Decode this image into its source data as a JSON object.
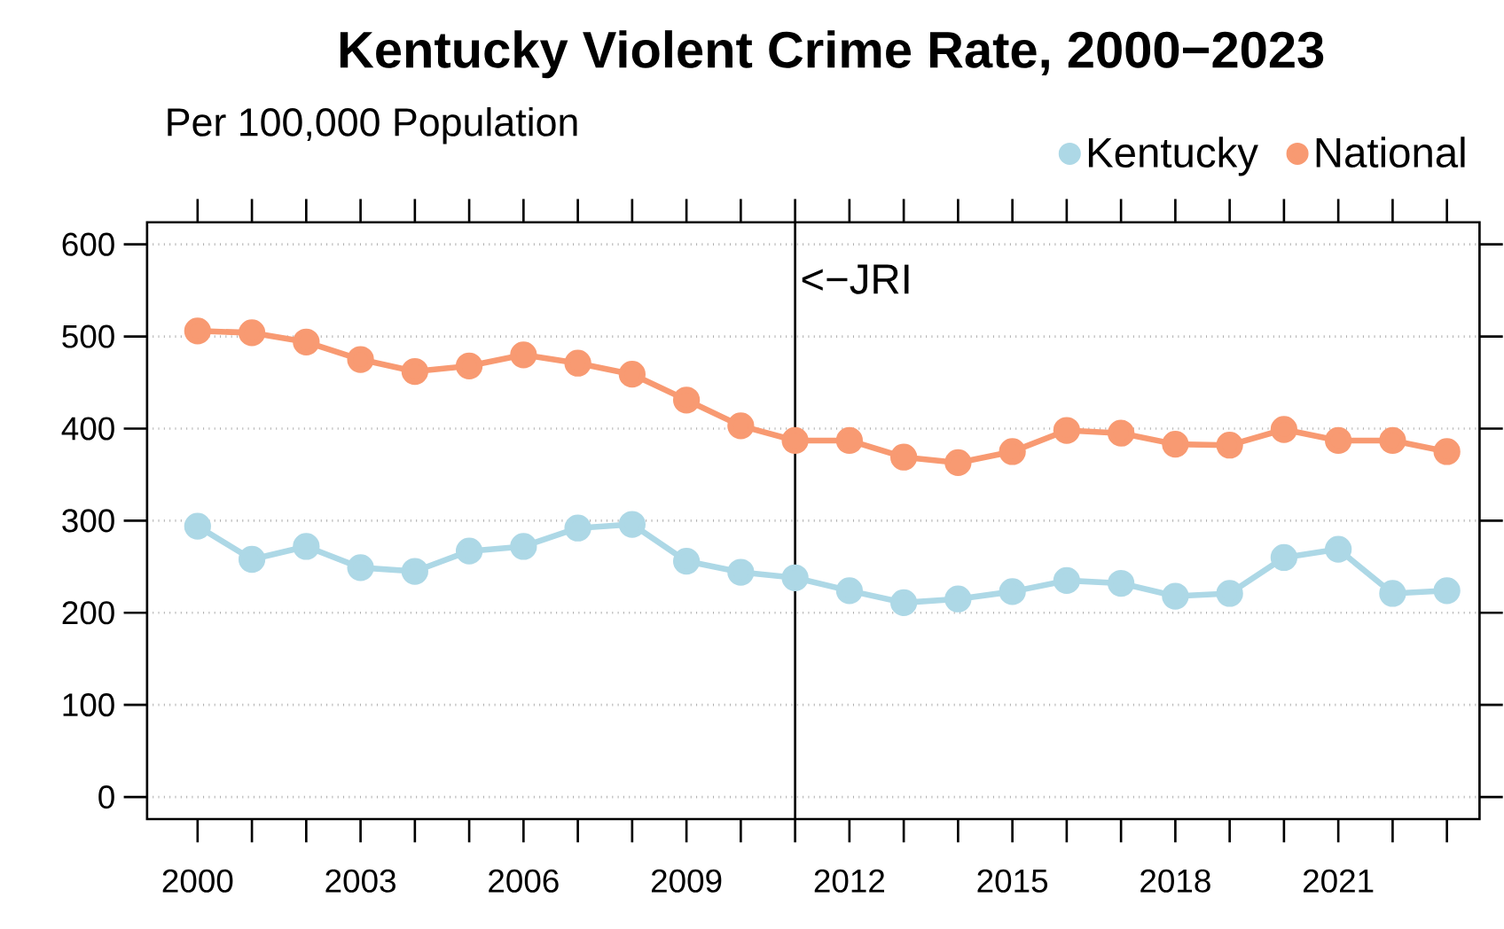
{
  "chart_data": {
    "type": "line",
    "title": "Kentucky Violent Crime Rate, 2000−2023",
    "subtitle": "Per 100,000 Population",
    "x": [
      2000,
      2001,
      2002,
      2003,
      2004,
      2005,
      2006,
      2007,
      2008,
      2009,
      2010,
      2011,
      2012,
      2013,
      2014,
      2015,
      2016,
      2017,
      2018,
      2019,
      2020,
      2021,
      2022,
      2023
    ],
    "series": [
      {
        "name": "Kentucky",
        "color": "#add8e6",
        "values": [
          294,
          258,
          272,
          249,
          245,
          267,
          272,
          292,
          296,
          256,
          244,
          238,
          224,
          211,
          215,
          223,
          235,
          232,
          218,
          221,
          260,
          269,
          221,
          224
        ]
      },
      {
        "name": "National",
        "color": "#f89a72",
        "values": [
          506,
          504,
          494,
          475,
          462,
          468,
          480,
          471,
          459,
          431,
          403,
          387,
          387,
          369,
          363,
          375,
          398,
          395,
          383,
          382,
          399,
          387,
          387,
          375
        ]
      }
    ],
    "xlim": [
      1999.07,
      2023.6
    ],
    "ylim": [
      -24,
      624
    ],
    "xticks": [
      2000,
      {
        "value": 2001,
        "label": null
      },
      {
        "value": 2002,
        "label": null
      },
      2003,
      {
        "value": 2004,
        "label": null
      },
      {
        "value": 2005,
        "label": null
      },
      2006,
      {
        "value": 2007,
        "label": null
      },
      {
        "value": 2008,
        "label": null
      },
      2009,
      {
        "value": 2010,
        "label": null
      },
      {
        "value": 2011,
        "label": null
      },
      2012,
      {
        "value": 2013,
        "label": null
      },
      {
        "value": 2014,
        "label": null
      },
      2015,
      {
        "value": 2016,
        "label": null
      },
      {
        "value": 2017,
        "label": null
      },
      2018,
      {
        "value": 2019,
        "label": null
      },
      {
        "value": 2020,
        "label": null
      },
      2021,
      {
        "value": 2022,
        "label": null
      },
      {
        "value": 2023,
        "label": null
      }
    ],
    "yticks": [
      0,
      100,
      200,
      300,
      400,
      500,
      600
    ],
    "ref_lines": [
      {
        "axis": "x",
        "value": 2011,
        "label": "<−JRI",
        "color": "#000000"
      }
    ],
    "grid": "y",
    "legend": "top right",
    "marker": "circle",
    "line_style": "solid"
  }
}
